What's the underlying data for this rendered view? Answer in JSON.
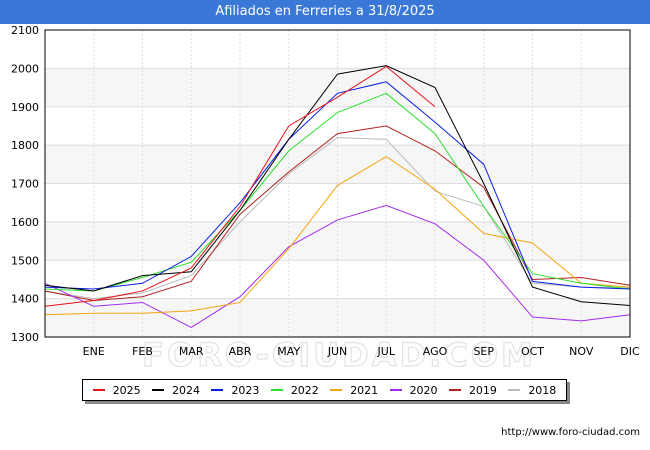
{
  "chart_data": {
    "type": "line",
    "title": "Afiliados en Ferreries a 31/8/2025",
    "xlabel": "",
    "ylabel": "",
    "categories": [
      "",
      "ENE",
      "FEB",
      "MAR",
      "ABR",
      "MAY",
      "JUN",
      "JUL",
      "AGO",
      "SEP",
      "OCT",
      "NOV",
      "DIC"
    ],
    "ylim": [
      1300,
      2100
    ],
    "yticks": [
      1300,
      1400,
      1500,
      1600,
      1700,
      1800,
      1900,
      2000,
      2100
    ],
    "grid": true,
    "legend_position": "bottom",
    "watermark": "FORO-CIUDAD.COM",
    "series": [
      {
        "name": "2025",
        "color": "#e8141a",
        "values": [
          1380,
          1395,
          1420,
          1480,
          1640,
          1850,
          1925,
          2005,
          1900,
          null,
          null,
          null,
          null
        ]
      },
      {
        "name": "2024",
        "color": "#000000",
        "values": [
          1435,
          1420,
          1460,
          1470,
          1630,
          1815,
          1985,
          2007,
          1950,
          1700,
          1430,
          1392,
          1382
        ]
      },
      {
        "name": "2023",
        "color": "#0a1ee8",
        "values": [
          1430,
          1425,
          1440,
          1510,
          1650,
          1815,
          1935,
          1965,
          1860,
          1750,
          1445,
          1430,
          1425
        ]
      },
      {
        "name": "2022",
        "color": "#2adf2a",
        "values": [
          1425,
          1420,
          1455,
          1495,
          1630,
          1785,
          1885,
          1935,
          1830,
          1640,
          1465,
          1440,
          1425
        ]
      },
      {
        "name": "2021",
        "color": "#f5a50f",
        "values": [
          1358,
          1362,
          1362,
          1368,
          1390,
          1530,
          1695,
          1770,
          1685,
          1570,
          1545,
          1440,
          1430
        ]
      },
      {
        "name": "2020",
        "color": "#a42cf0",
        "values": [
          1440,
          1380,
          1390,
          1325,
          1405,
          1535,
          1605,
          1643,
          1595,
          1500,
          1352,
          1342,
          1358
        ]
      },
      {
        "name": "2019",
        "color": "#b22222",
        "values": [
          1420,
          1395,
          1405,
          1445,
          1620,
          1730,
          1830,
          1850,
          1785,
          1690,
          1450,
          1455,
          1435
        ]
      },
      {
        "name": "2018",
        "color": "#bbbbbb",
        "values": [
          1420,
          1400,
          1415,
          1460,
          1600,
          1725,
          1820,
          1815,
          1680,
          1640,
          1440,
          1430,
          1428
        ]
      }
    ]
  },
  "footer": {
    "url": "http://www.foro-ciudad.com"
  }
}
